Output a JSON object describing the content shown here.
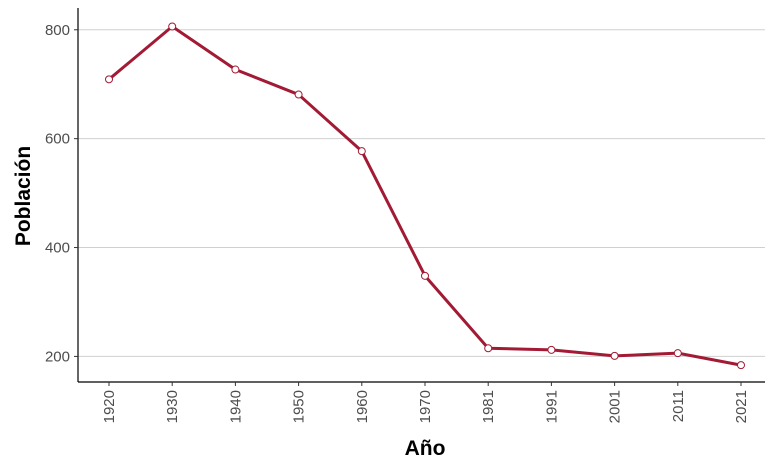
{
  "chart_data": {
    "type": "line",
    "title": "",
    "xlabel": "Año",
    "ylabel": "Población",
    "categories": [
      "1920",
      "1930",
      "1940",
      "1950",
      "1960",
      "1970",
      "1981",
      "1991",
      "2001",
      "2011",
      "2021"
    ],
    "series": [
      {
        "values": [
          709,
          806,
          727,
          681,
          577,
          348,
          215,
          212,
          201,
          206,
          184
        ]
      }
    ],
    "ylim": [
      153,
      840
    ],
    "yticks": [
      200,
      400,
      600,
      800
    ],
    "grid": {
      "horizontal": true,
      "vertical": false
    },
    "legend": "none",
    "colors": {
      "line": "#a31a35",
      "grid": "#d0d0d0",
      "axis": "#000000"
    }
  }
}
